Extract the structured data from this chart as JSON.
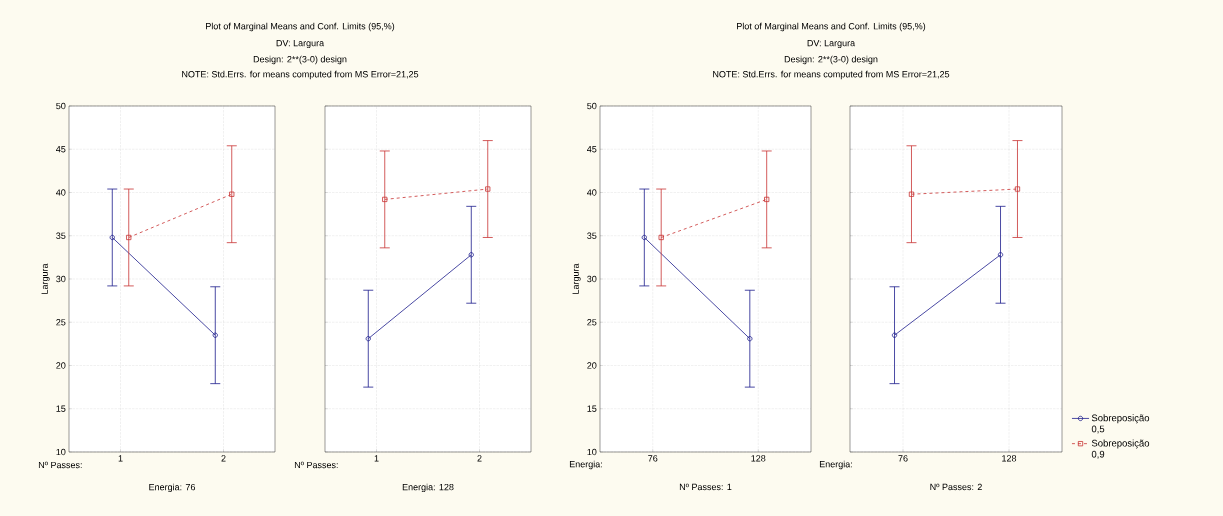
{
  "chart_data": [
    {
      "type": "line",
      "title": "Plot of Marginal Means and Conf. Limits (95,%)",
      "subtitle": "DV: Largura",
      "annotations": [
        "Design: 2**(3-0) design",
        "NOTE: Std.Errs. for means computed from MS Error=21,25",
        "Nº Passes:"
      ],
      "categories": [
        "1",
        "2"
      ],
      "xlabel": "Energia: 76",
      "ylabel": "Largura",
      "series": [
        {
          "color": "#1c1c8c",
          "values": [
            34.8,
            23.5
          ],
          "errors": [
            5.6,
            5.6
          ],
          "marker": "circle",
          "line_style": "solid"
        },
        {
          "color": "#c83232",
          "values": [
            34.8,
            39.8
          ],
          "errors": [
            5.6,
            5.6
          ],
          "marker": "square",
          "line_style": "dashed"
        }
      ],
      "ylim": [
        10,
        50
      ],
      "yticks": [
        10,
        15,
        20,
        25,
        30,
        35,
        40,
        45,
        50
      ],
      "grid": true,
      "legend": false
    },
    {
      "type": "line",
      "annotations": [
        "Nº Passes:"
      ],
      "categories": [
        "1",
        "2"
      ],
      "xlabel": "Energia: 128",
      "series": [
        {
          "color": "#1c1c8c",
          "values": [
            23.1,
            32.8
          ],
          "errors": [
            5.6,
            5.6
          ],
          "marker": "circle",
          "line_style": "solid"
        },
        {
          "color": "#c83232",
          "values": [
            39.2,
            40.4
          ],
          "errors": [
            5.6,
            5.6
          ],
          "marker": "square",
          "line_style": "dashed"
        }
      ],
      "ylim": [
        10,
        50
      ],
      "yticks": [
        10,
        15,
        20,
        25,
        30,
        35,
        40,
        45,
        50
      ],
      "grid": true,
      "legend": false,
      "tick_labels": "x"
    },
    {
      "type": "line",
      "title": "Plot of Marginal Means and Conf. Limits (95,%)",
      "subtitle": "DV: Largura",
      "annotations": [
        "Design: 2**(3-0) design",
        "NOTE: Std.Errs. for means computed from MS Error=21,25",
        "Energia:"
      ],
      "categories": [
        "76",
        "128"
      ],
      "xlabel": "Nº Passes: 1",
      "ylabel": "Largura",
      "series": [
        {
          "color": "#1c1c8c",
          "values": [
            34.8,
            23.1
          ],
          "errors": [
            5.6,
            5.6
          ],
          "marker": "circle",
          "line_style": "solid"
        },
        {
          "color": "#c83232",
          "values": [
            34.8,
            39.2
          ],
          "errors": [
            5.6,
            5.6
          ],
          "marker": "square",
          "line_style": "dashed"
        }
      ],
      "ylim": [
        10,
        50
      ],
      "yticks": [
        10,
        15,
        20,
        25,
        30,
        35,
        40,
        45,
        50
      ],
      "grid": true,
      "legend": false
    },
    {
      "type": "line",
      "annotations": [
        "Energia:"
      ],
      "categories": [
        "76",
        "128"
      ],
      "xlabel": "Nº Passes: 2",
      "series": [
        {
          "name": "Sobreposição 0,5",
          "color": "#1c1c8c",
          "values": [
            23.5,
            32.8
          ],
          "errors": [
            5.6,
            5.6
          ],
          "marker": "circle",
          "line_style": "solid"
        },
        {
          "name": "Sobreposição 0,9",
          "color": "#c83232",
          "values": [
            39.8,
            40.4
          ],
          "errors": [
            5.6,
            5.6
          ],
          "marker": "square",
          "line_style": "dashed"
        }
      ],
      "ylim": [
        10,
        50
      ],
      "yticks": [
        10,
        15,
        20,
        25,
        30,
        35,
        40,
        45,
        50
      ],
      "grid": true,
      "legend": "bottom right",
      "tick_labels": "x"
    }
  ]
}
